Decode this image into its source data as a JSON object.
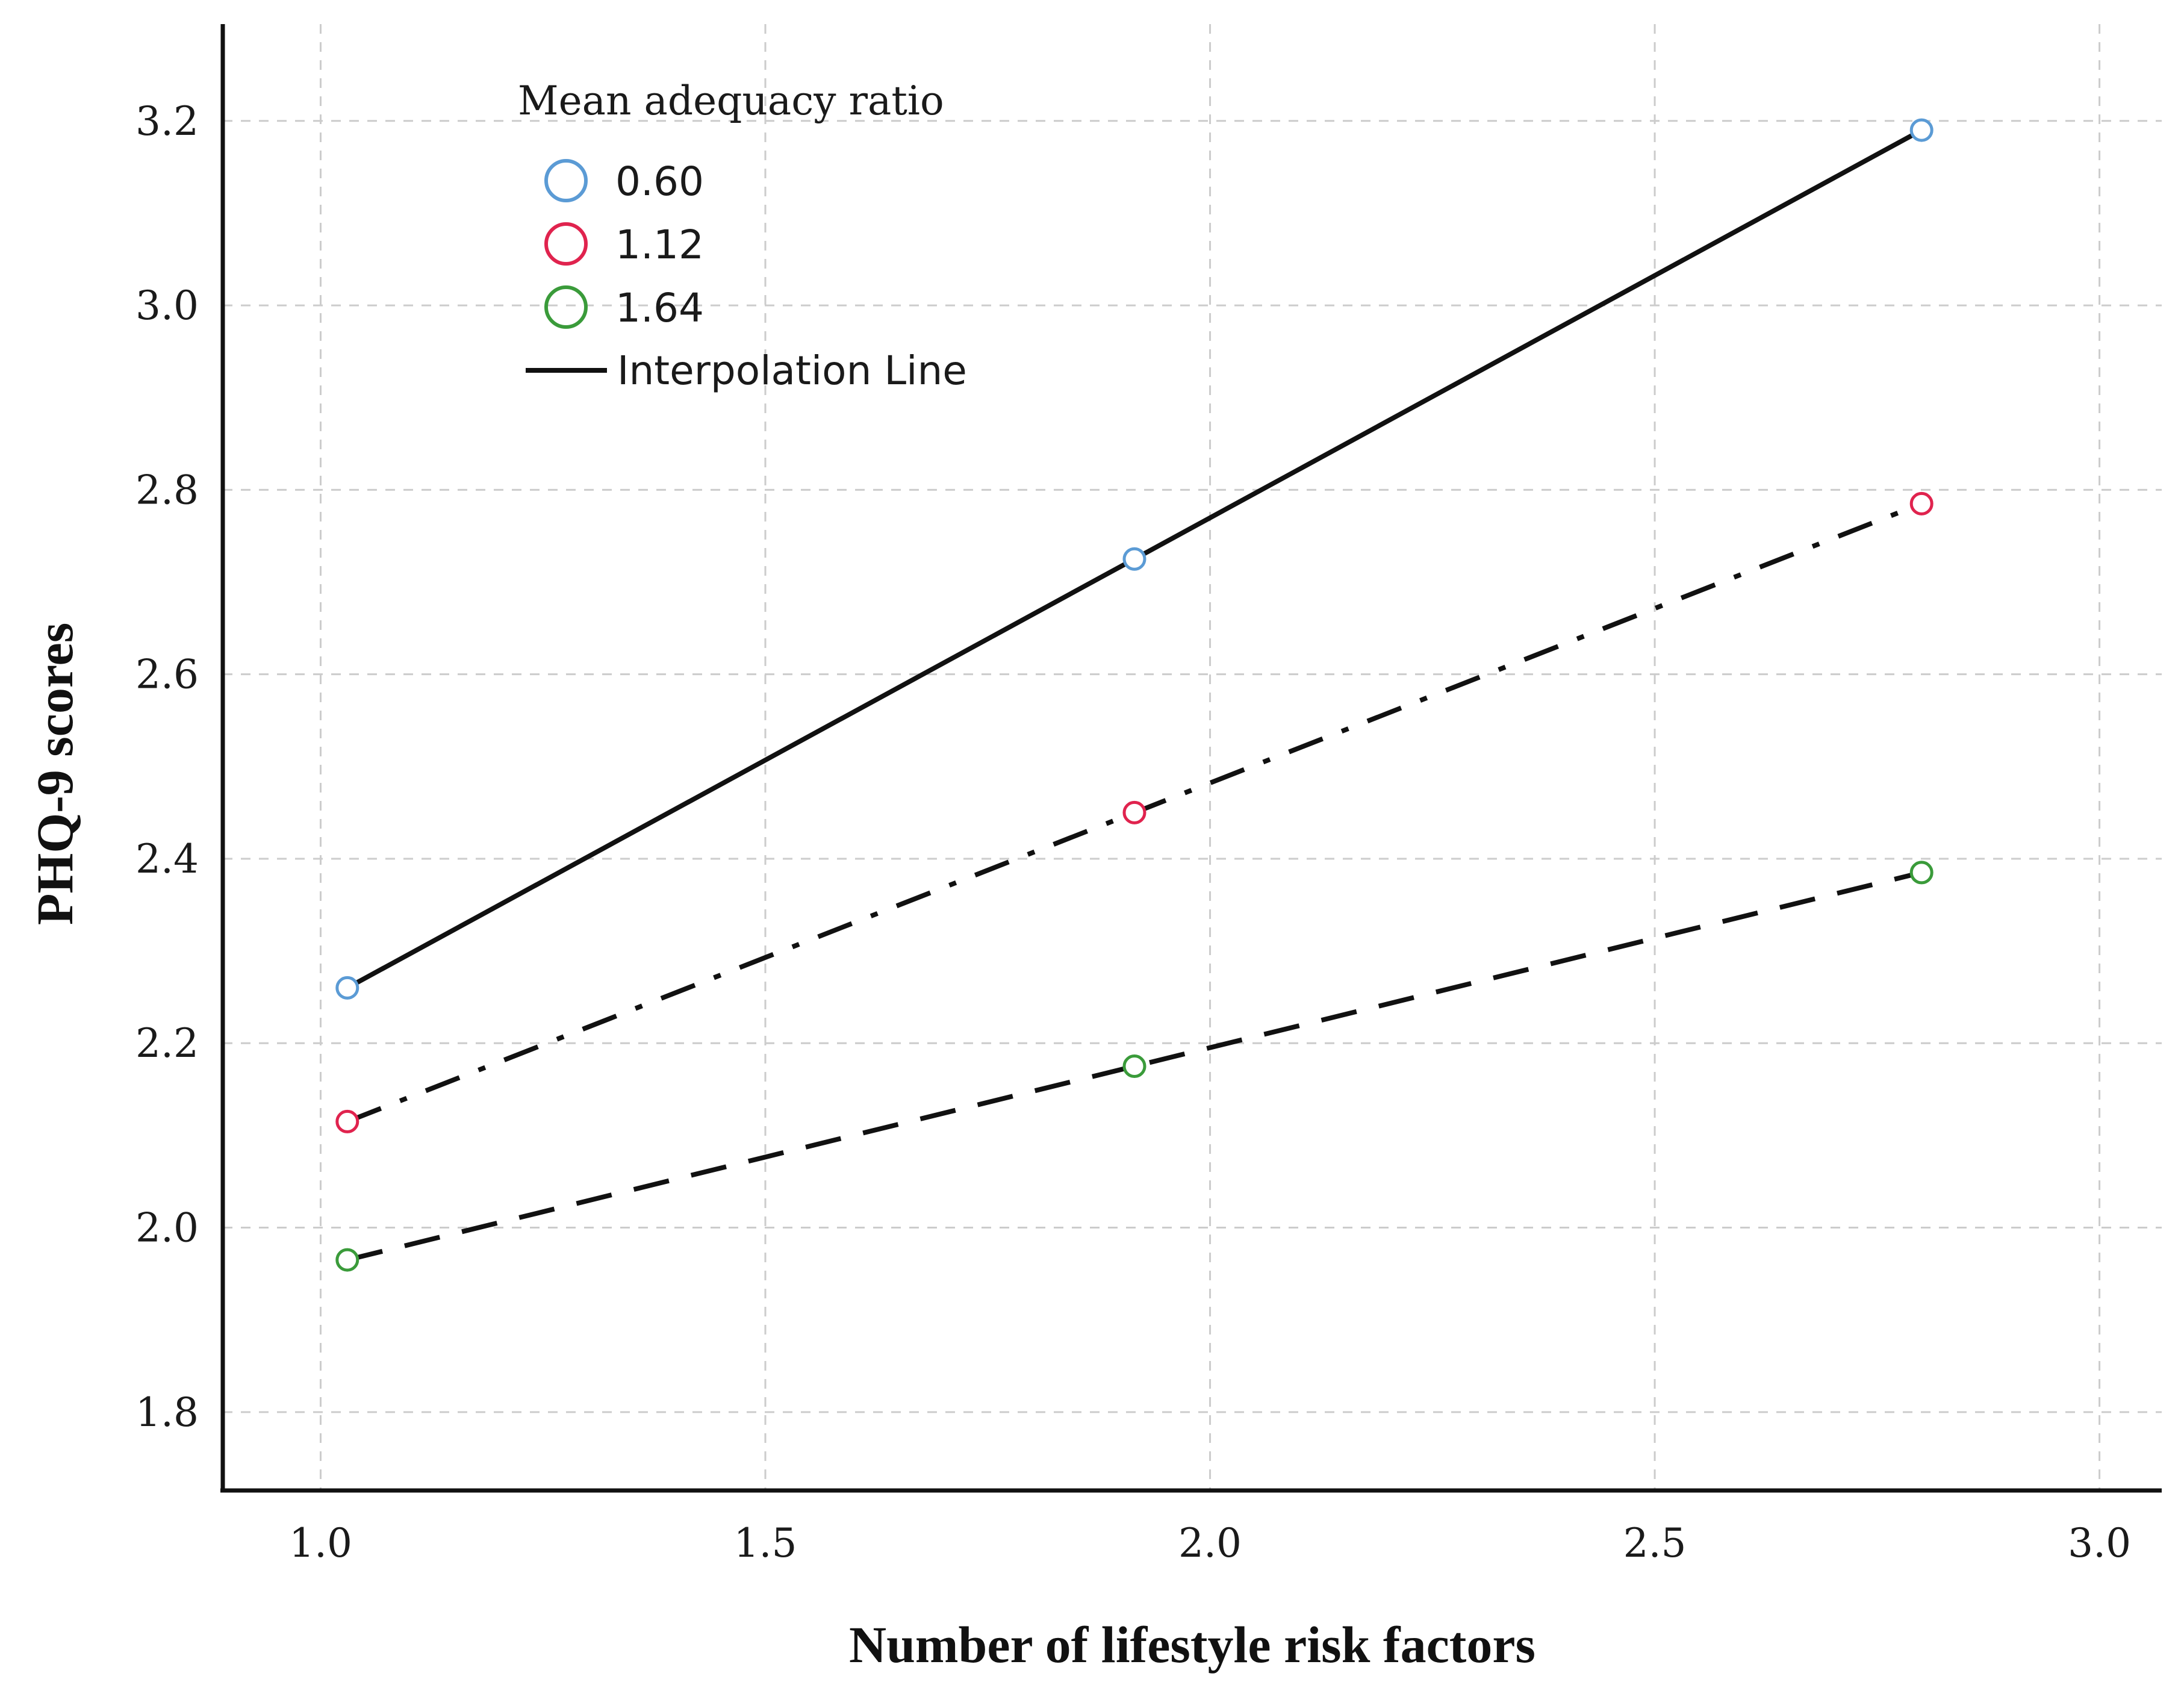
{
  "chart_data": {
    "type": "line",
    "title": "",
    "xlabel": "Number of lifestyle risk factors",
    "ylabel": "PHQ-9 scores",
    "xlim": [
      0.89,
      3.07
    ],
    "ylim": [
      1.715,
      3.305
    ],
    "xticks": [
      1.0,
      1.5,
      2.0,
      2.5,
      3.0
    ],
    "yticks": [
      1.8,
      2.0,
      2.2,
      2.4,
      2.6,
      2.8,
      3.0,
      3.2
    ],
    "xtick_labels": [
      "1.0",
      "1.5",
      "2.0",
      "2.5",
      "3.0"
    ],
    "ytick_labels": [
      "1.8",
      "2.0",
      "2.2",
      "2.4",
      "2.6",
      "2.8",
      "3.0",
      "3.2"
    ],
    "grid": true,
    "x": [
      1.03,
      1.915,
      2.8
    ],
    "series": [
      {
        "name": "0.60",
        "values": [
          2.26,
          2.725,
          3.19
        ],
        "color": "#5b9bd5",
        "line_style": "solid"
      },
      {
        "name": "1.12",
        "values": [
          2.115,
          2.45,
          2.785
        ],
        "color": "#e0234e",
        "line_style": "dash-dot"
      },
      {
        "name": "1.64",
        "values": [
          1.965,
          2.175,
          2.385
        ],
        "color": "#3a9b3a",
        "line_style": "dashed"
      }
    ],
    "legend": {
      "title": "Mean adequacy ratio",
      "position": "top-left",
      "line_label": "Interpolation Line"
    }
  }
}
